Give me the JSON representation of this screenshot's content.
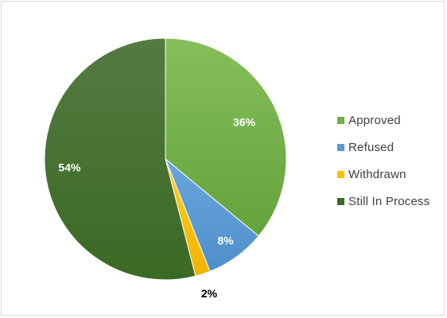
{
  "chart_data": {
    "type": "pie",
    "title": "",
    "categories": [
      "Approved",
      "Refused",
      "Withdrawn",
      "Still In Process"
    ],
    "values": [
      36,
      8,
      2,
      54
    ],
    "labels": [
      "36%",
      "8%",
      "2%",
      "54%"
    ],
    "colors": [
      "#70ad47",
      "#5b9bd5",
      "#ffc000",
      "#3d6b2a"
    ],
    "legend_position": "right",
    "start_angle_deg": 0,
    "direction": "clockwise"
  }
}
